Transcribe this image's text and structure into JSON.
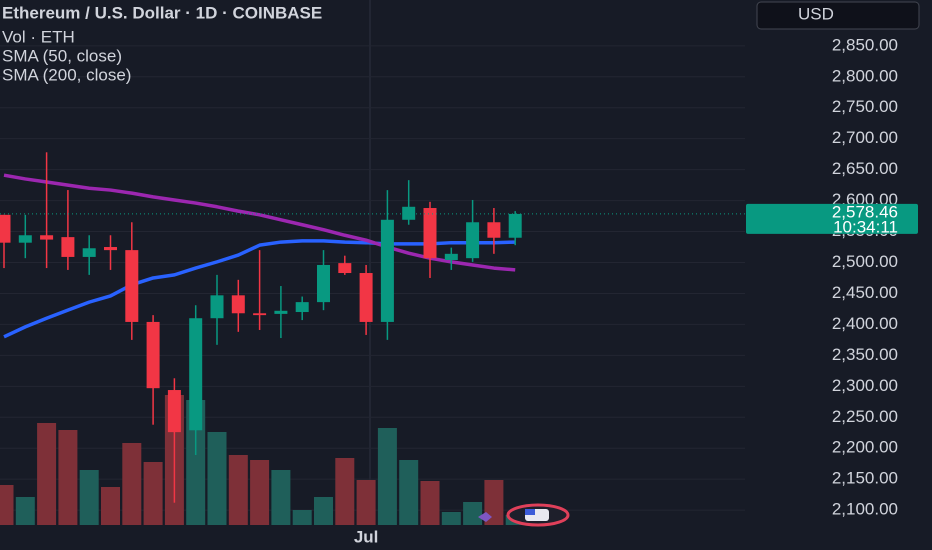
{
  "chart_data": {
    "type": "candlestick",
    "title": "Ethereum / U.S. Dollar · 1D · COINBASE",
    "volume_label": "Vol · ETH",
    "currency": "USD",
    "categories": [
      null,
      null,
      null,
      null,
      null,
      null,
      null,
      null,
      null,
      null,
      null,
      null,
      null,
      null,
      null,
      null,
      null,
      "Jul",
      null,
      null,
      null,
      null,
      null,
      null,
      null
    ],
    "open": [
      2577,
      2532,
      2544,
      2541,
      2509,
      2525,
      2520,
      2404,
      2294,
      2229,
      2410,
      2447,
      2418,
      2417,
      2420,
      2436,
      2499,
      2483,
      2404,
      2569,
      2588,
      2504,
      2507,
      2565,
      2540
    ],
    "high": [
      2577,
      2577,
      2678,
      2617,
      2544,
      2544,
      2565,
      2415,
      2313,
      2431,
      2480,
      2472,
      2520,
      2462,
      2445,
      2520,
      2511,
      2496,
      2617,
      2633,
      2598,
      2524,
      2601,
      2588,
      2583
    ],
    "low": [
      2491,
      2507,
      2491,
      2488,
      2480,
      2488,
      2375,
      2238,
      2112,
      2189,
      2367,
      2388,
      2391,
      2378,
      2407,
      2423,
      2480,
      2383,
      2375,
      2561,
      2475,
      2488,
      2501,
      2514,
      2528
    ],
    "close": [
      2532,
      2544,
      2537,
      2509,
      2523,
      2520,
      2404,
      2297,
      2226,
      2410,
      2447,
      2418,
      2415,
      2422,
      2436,
      2496,
      2483,
      2404,
      2569,
      2590,
      2507,
      2514,
      2565,
      2540,
      2578.46
    ],
    "up_color": "#089981",
    "down_color": "#f23645",
    "volume": [
      40,
      28,
      102,
      95,
      55,
      38,
      82,
      63,
      130,
      125,
      93,
      70,
      65,
      55,
      15,
      28,
      67,
      45,
      97,
      65,
      44,
      13,
      23,
      45,
      10
    ],
    "volume_ylim": [
      0,
      525
    ],
    "volume_up_color": "#1f5f5a",
    "volume_down_color": "#7e3038",
    "series": [
      {
        "name": "SMA (50, close)",
        "color": "#2962ff",
        "values": [
          2380,
          2396,
          2410,
          2423,
          2436,
          2446,
          2464,
          2475,
          2480,
          2491,
          2501,
          2512,
          2528,
          2533,
          2535,
          2535,
          2533,
          2532,
          2530,
          2530,
          2530,
          2532,
          2532,
          2532,
          2533
        ]
      },
      {
        "name": "SMA (200, close)",
        "color": "#9c27b0",
        "values": [
          2641,
          2635,
          2630,
          2625,
          2620,
          2617,
          2612,
          2606,
          2601,
          2596,
          2590,
          2583,
          2577,
          2569,
          2561,
          2553,
          2544,
          2536,
          2525,
          2515,
          2507,
          2501,
          2496,
          2491,
          2488
        ]
      }
    ],
    "last_price": {
      "value": 2578.46,
      "label": "2,578.46"
    },
    "countdown": "10:34:11",
    "ylim": [
      2076,
      2924
    ],
    "yticks": [
      {
        "value": 2100,
        "label": "2,100.00"
      },
      {
        "value": 2150,
        "label": "2,150.00"
      },
      {
        "value": 2200,
        "label": "2,200.00"
      },
      {
        "value": 2250,
        "label": "2,250.00"
      },
      {
        "value": 2300,
        "label": "2,300.00"
      },
      {
        "value": 2350,
        "label": "2,350.00"
      },
      {
        "value": 2400,
        "label": "2,400.00"
      },
      {
        "value": 2450,
        "label": "2,450.00"
      },
      {
        "value": 2500,
        "label": "2,500.00"
      },
      {
        "value": 2550,
        "label": "2,550.00"
      },
      {
        "value": 2600,
        "label": "2,600.00"
      },
      {
        "value": 2650,
        "label": "2,650.00"
      },
      {
        "value": 2700,
        "label": "2,700.00"
      },
      {
        "value": 2750,
        "label": "2,750.00"
      },
      {
        "value": 2800,
        "label": "2,800.00"
      },
      {
        "value": 2850,
        "label": "2,850.00"
      }
    ],
    "grid": true
  }
}
